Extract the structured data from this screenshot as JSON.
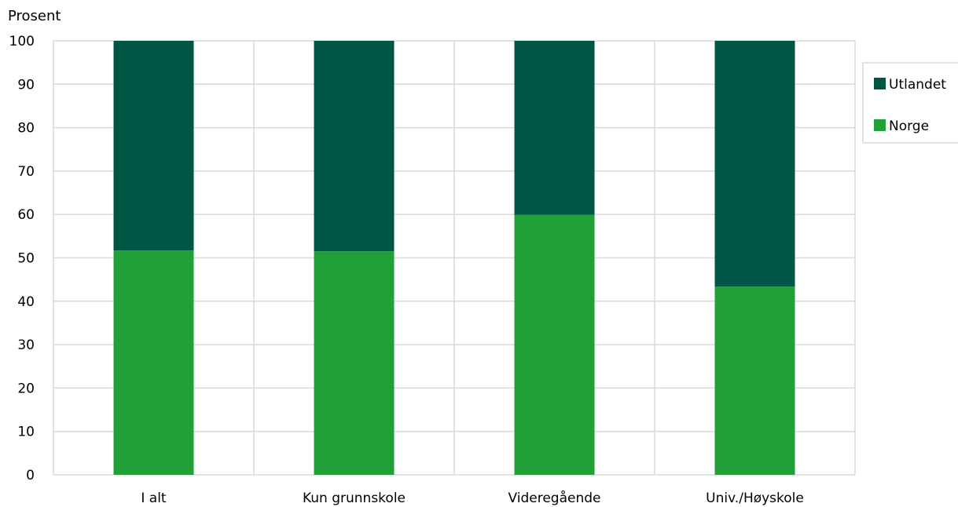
{
  "chart_data": {
    "type": "bar",
    "stacked": true,
    "ylabel": "Prosent",
    "xlabel": "",
    "ylim": [
      0,
      100
    ],
    "yticks": [
      0,
      10,
      20,
      30,
      40,
      50,
      60,
      70,
      80,
      90,
      100
    ],
    "categories": [
      "I alt",
      "Kun grunnskole",
      "Videregående",
      "Univ./Høyskole"
    ],
    "series": [
      {
        "name": "Norge",
        "color": "#22a038",
        "values": [
          51.7,
          51.5,
          59.9,
          43.4
        ]
      },
      {
        "name": "Utlandet",
        "color": "#005645",
        "values": [
          48.3,
          48.5,
          40.1,
          56.6
        ]
      }
    ],
    "grid": true,
    "legend": {
      "position": "right",
      "order": [
        "Utlandet",
        "Norge"
      ]
    }
  }
}
